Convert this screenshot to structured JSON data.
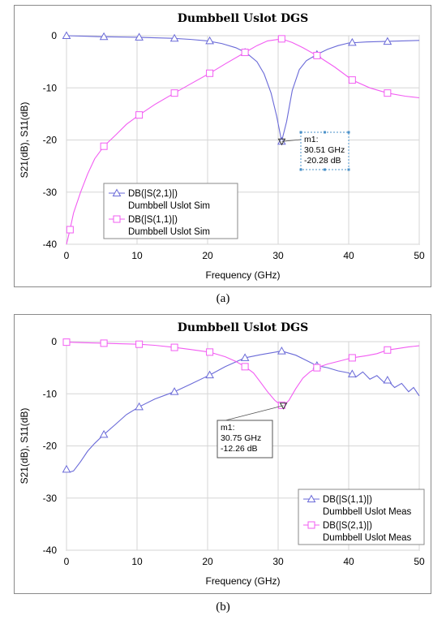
{
  "captions": [
    "(a)",
    "(b)"
  ],
  "colors": {
    "blue": "#6a6ad8",
    "magenta": "#f25cf2",
    "grid": "#d6d6d6"
  },
  "chart_data": [
    {
      "type": "line",
      "title": "Dumbbell Uslot DGS",
      "xlabel": "Frequency (GHz)",
      "ylabel": "S21(dB), S11(dB)",
      "xlim": [
        0,
        50
      ],
      "ylim": [
        -40,
        0
      ],
      "xticks": [
        0,
        10,
        20,
        30,
        40,
        50
      ],
      "yticks": [
        0,
        -10,
        -20,
        -30,
        -40
      ],
      "grid": true,
      "legend_position": "bottom-left",
      "series": [
        {
          "name": "DB(|S(2,1)|)",
          "name2": "Dumbbell Uslot Sim",
          "color": "#6a6ad8",
          "marker": "triangle",
          "x": [
            0,
            2.5,
            5,
            7.5,
            10,
            12.5,
            15,
            17.5,
            20,
            22,
            24,
            25.5,
            27,
            28,
            29,
            29.8,
            30.5,
            31.2,
            32,
            33,
            34,
            35.5,
            37,
            38.5,
            40,
            42.5,
            45,
            47.5,
            50
          ],
          "y": [
            0,
            -0.1,
            -0.2,
            -0.25,
            -0.3,
            -0.4,
            -0.5,
            -0.7,
            -1.0,
            -1.5,
            -2.3,
            -3.3,
            -5.0,
            -7.3,
            -11.0,
            -15.5,
            -20.28,
            -16.5,
            -10.5,
            -6.5,
            -4.8,
            -3.6,
            -2.6,
            -1.9,
            -1.4,
            -1.2,
            -1.1,
            -1.0,
            -0.9
          ],
          "markers_x": [
            0,
            5.3,
            10.3,
            15.3,
            20.3,
            25.3,
            30.5,
            35.5,
            40.5,
            45.5
          ],
          "markers_y": [
            0,
            -0.2,
            -0.3,
            -0.5,
            -1.0,
            -3.2,
            -20.28,
            -3.6,
            -1.3,
            -1.1
          ]
        },
        {
          "name": "DB(|S(1,1)|)",
          "name2": "Dumbbell Uslot Sim",
          "color": "#f25cf2",
          "marker": "square",
          "x": [
            0,
            0.5,
            1,
            2,
            3,
            4,
            5.3,
            7,
            8.5,
            10.3,
            12.5,
            15.3,
            17.5,
            20.3,
            22.5,
            25.3,
            27,
            28.5,
            30.5,
            32,
            33.5,
            35.5,
            38,
            40.5,
            43,
            45.5,
            48,
            50
          ],
          "y": [
            -40,
            -37.2,
            -34,
            -30,
            -26.5,
            -23.6,
            -21.2,
            -19.0,
            -17.0,
            -15.2,
            -13.2,
            -11.0,
            -9.3,
            -7.2,
            -5.4,
            -3.2,
            -1.9,
            -1.0,
            -0.6,
            -1.3,
            -2.3,
            -3.8,
            -6.0,
            -8.5,
            -10.0,
            -11.0,
            -11.6,
            -11.9
          ],
          "markers_x": [
            0.5,
            5.3,
            10.3,
            15.3,
            20.3,
            25.3,
            30.5,
            35.5,
            40.5,
            45.5
          ],
          "markers_y": [
            -37.2,
            -21.2,
            -15.2,
            -11.0,
            -7.2,
            -3.2,
            -0.6,
            -3.8,
            -8.5,
            -11.0
          ]
        }
      ],
      "marker_box": {
        "label": "m1:",
        "line1": "30.51 GHz",
        "line2": "-20.28 dB",
        "x": 30.51,
        "y": -20.28
      }
    },
    {
      "type": "line",
      "title": "Dumbbell Uslot DGS",
      "xlabel": "Frequency (GHz)",
      "ylabel": "S21(dB), S11(dB)",
      "xlim": [
        0,
        50
      ],
      "ylim": [
        -40,
        0
      ],
      "xticks": [
        0,
        10,
        20,
        30,
        40,
        50
      ],
      "yticks": [
        0,
        -10,
        -20,
        -30,
        -40
      ],
      "grid": true,
      "legend_position": "bottom-right",
      "series": [
        {
          "name": "DB(|S(1,1)|)",
          "name2": "Dumbbell Uslot Meas",
          "color": "#6a6ad8",
          "marker": "triangle",
          "x": [
            0,
            0.5,
            1,
            2,
            3,
            4,
            5.3,
            7,
            8.5,
            10.3,
            12.5,
            15.3,
            17.5,
            20.3,
            22.5,
            25.3,
            27.5,
            30.5,
            32.5,
            34,
            35.5,
            37,
            38.5,
            40,
            41,
            42,
            43,
            44,
            45,
            45.5,
            46.5,
            47.5,
            48.5,
            49.2,
            50
          ],
          "y": [
            -24.5,
            -25.0,
            -24.8,
            -23.0,
            -21.0,
            -19.5,
            -17.8,
            -15.8,
            -14.0,
            -12.5,
            -11.0,
            -9.6,
            -8.2,
            -6.4,
            -4.8,
            -3.1,
            -2.5,
            -1.8,
            -2.6,
            -3.6,
            -4.6,
            -5.0,
            -5.6,
            -6.0,
            -6.8,
            -5.8,
            -7.2,
            -6.5,
            -7.8,
            -7.4,
            -8.8,
            -8.0,
            -9.6,
            -8.8,
            -10.4
          ],
          "markers_x": [
            0,
            5.3,
            10.3,
            15.3,
            20.3,
            25.3,
            30.5,
            35.5,
            40.5,
            45.5
          ],
          "markers_y": [
            -24.5,
            -17.8,
            -12.5,
            -9.6,
            -6.4,
            -3.1,
            -1.8,
            -4.6,
            -6.2,
            -7.4
          ]
        },
        {
          "name": "DB(|S(2,1)|)",
          "name2": "Dumbbell Uslot Meas",
          "color": "#f25cf2",
          "marker": "square",
          "x": [
            0,
            2.5,
            5.3,
            7.5,
            10.3,
            12.5,
            15.3,
            17.5,
            20.3,
            22.5,
            24,
            25.3,
            26.5,
            27.5,
            28.5,
            29.5,
            30.3,
            30.75,
            31.5,
            32.5,
            33.5,
            34.5,
            35.5,
            37,
            38.5,
            40.5,
            42.5,
            44,
            45.5,
            47,
            48.5,
            50
          ],
          "y": [
            -0.1,
            -0.2,
            -0.3,
            -0.4,
            -0.5,
            -0.7,
            -1.1,
            -1.5,
            -2.0,
            -2.9,
            -3.8,
            -4.8,
            -6.0,
            -7.8,
            -9.6,
            -11.2,
            -12.1,
            -12.26,
            -11.3,
            -9.0,
            -7.0,
            -5.8,
            -5.0,
            -4.3,
            -3.8,
            -3.1,
            -2.7,
            -2.3,
            -1.6,
            -1.3,
            -1.0,
            -0.8
          ],
          "markers_x": [
            0,
            5.3,
            10.3,
            15.3,
            20.3,
            25.3,
            30.5,
            35.5,
            40.5,
            45.5
          ],
          "markers_y": [
            -0.1,
            -0.3,
            -0.5,
            -1.1,
            -2.0,
            -4.8,
            -12.2,
            -5.0,
            -3.1,
            -1.6
          ]
        }
      ],
      "marker_box": {
        "label": "m1:",
        "line1": "30.75 GHz",
        "line2": "-12.26 dB",
        "x": 30.75,
        "y": -12.26
      }
    }
  ]
}
